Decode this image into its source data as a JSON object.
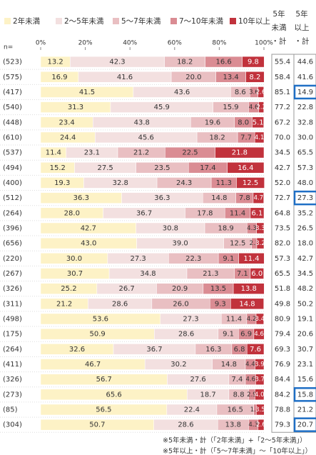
{
  "chart_data": {
    "type": "stacked_barh",
    "axis_label": "n=",
    "categories": [
      "(523)",
      "(575)",
      "(417)",
      "(540)",
      "(448)",
      "(610)",
      "(537)",
      "(494)",
      "(400)",
      "(512)",
      "(264)",
      "(396)",
      "(656)",
      "(220)",
      "(267)",
      "(326)",
      "(311)",
      "(498)",
      "(175)",
      "(264)",
      "(411)",
      "(326)",
      "(273)",
      "(85)",
      "(304)"
    ],
    "xlim": [
      0,
      100
    ],
    "xticks": [
      {
        "value": 0,
        "label": "0%"
      },
      {
        "value": 20,
        "label": "20%"
      },
      {
        "value": 40,
        "label": "40%"
      },
      {
        "value": 60,
        "label": "60%"
      },
      {
        "value": 80,
        "label": "80%"
      },
      {
        "value": 100,
        "label": "100%"
      }
    ],
    "series": [
      {
        "name": "2年未満",
        "color": "#fdf2c6",
        "text_color": "#333333",
        "values": [
          13.2,
          16.9,
          41.5,
          31.3,
          23.4,
          24.4,
          11.4,
          15.2,
          19.3,
          36.3,
          28.0,
          42.7,
          43.0,
          30.0,
          30.7,
          25.2,
          21.2,
          53.6,
          50.9,
          32.6,
          46.7,
          56.7,
          65.6,
          56.5,
          50.7
        ],
        "value_labels": [
          "13.2",
          "16.9",
          "41.5",
          "31.3",
          "23.4",
          "24.4",
          "11.4",
          "15.2",
          "19.3",
          "36.3",
          "28.0",
          "42.7",
          "43.0",
          "30.0",
          "30.7",
          "25.2",
          "21.2",
          "53.6",
          "50.9",
          "32.6",
          "46.7",
          "56.7",
          "65.6",
          "56.5",
          "50.7"
        ]
      },
      {
        "name": "2～5年未満",
        "color": "#f3e0e0",
        "text_color": "#333333",
        "values": [
          42.3,
          41.6,
          43.6,
          45.9,
          43.8,
          45.6,
          23.1,
          27.5,
          32.8,
          36.3,
          36.7,
          30.8,
          39.0,
          27.3,
          34.8,
          26.7,
          28.6,
          27.3,
          28.6,
          36.7,
          30.2,
          27.6,
          18.7,
          22.4,
          28.6
        ],
        "value_labels": [
          "42.3",
          "41.6",
          "43.6",
          "45.9",
          "43.8",
          "45.6",
          "23.1",
          "27.5",
          "32.8",
          "36.3",
          "36.7",
          "30.8",
          "39.0",
          "27.3",
          "34.8",
          "26.7",
          "28.6",
          "27.3",
          "28.6",
          "36.7",
          "30.2",
          "27.6",
          "18.7",
          "22.4",
          "28.6"
        ]
      },
      {
        "name": "5～7年未満",
        "color": "#e9bfc2",
        "text_color": "#333333",
        "values": [
          18.2,
          20.0,
          8.6,
          15.9,
          19.6,
          18.2,
          21.2,
          23.5,
          24.3,
          14.8,
          17.8,
          18.9,
          12.5,
          22.3,
          21.3,
          20.9,
          26.0,
          11.4,
          9.1,
          16.3,
          14.8,
          7.4,
          8.8,
          16.5,
          13.8
        ],
        "value_labels": [
          "18.2",
          "20.0",
          "8.6",
          "15.9",
          "19.6",
          "18.2",
          "21.2",
          "23.5",
          "24.3",
          "14.8",
          "17.8",
          "18.9",
          "12.5",
          "22.3",
          "21.3",
          "20.9",
          "26.0",
          "11.4",
          "9.1",
          "16.3",
          "14.8",
          "7.4",
          "8.8",
          "16.5",
          "13.8"
        ]
      },
      {
        "name": "7～10年未満",
        "color": "#da8c93",
        "text_color": "#333333",
        "values": [
          16.6,
          13.4,
          3.6,
          4.6,
          8.0,
          7.7,
          22.5,
          17.4,
          11.3,
          7.8,
          11.4,
          4.3,
          2.3,
          9.1,
          7.1,
          13.5,
          9.3,
          4.2,
          6.9,
          6.8,
          4.4,
          4.6,
          2.9,
          1.2,
          4.3
        ],
        "value_labels": [
          "16.6",
          "13.4",
          "3.6",
          "4.6",
          "8.0",
          "7.7",
          "22.5",
          "17.4",
          "11.3",
          "7.8",
          "11.4",
          "4.3",
          "2.3",
          "9.1",
          "7.1",
          "13.5",
          "9.3",
          "4.2",
          "6.9",
          "6.8",
          "4.4",
          "4.6",
          "2.9",
          "1.2",
          "4.3"
        ]
      },
      {
        "name": "10年以上",
        "color": "#c1323c",
        "text_color": "#ffffff",
        "values": [
          9.8,
          8.2,
          2.6,
          2.2,
          5.1,
          4.1,
          21.8,
          16.4,
          12.5,
          4.7,
          6.1,
          3.3,
          3.2,
          11.4,
          6.0,
          13.8,
          14.8,
          3.4,
          4.6,
          7.6,
          3.9,
          3.7,
          4.0,
          3.5,
          2.6
        ],
        "value_labels": [
          "9.8",
          "8.2",
          "2.6",
          "2.2",
          "5.1",
          "4.1",
          "21.8",
          "16.4",
          "12.5",
          "4.7",
          "6.1",
          "3.3",
          "3.2",
          "11.4",
          "6.0",
          "13.8",
          "14.8",
          "3.4",
          "4.6",
          "7.6",
          "3.9",
          "3.7",
          "4.0",
          "3.5",
          "2.6"
        ]
      }
    ],
    "summary_columns": [
      {
        "header": [
          "5年",
          "未満",
          "・計"
        ],
        "values": [
          55.4,
          58.4,
          85.1,
          77.2,
          67.2,
          70.0,
          34.5,
          42.7,
          52.0,
          72.7,
          64.8,
          73.5,
          82.0,
          57.3,
          65.5,
          51.8,
          49.8,
          80.9,
          79.4,
          69.3,
          76.9,
          84.4,
          84.2,
          78.8,
          79.3
        ],
        "value_labels": [
          "55.4",
          "58.4",
          "85.1",
          "77.2",
          "67.2",
          "70.0",
          "34.5",
          "42.7",
          "52.0",
          "72.7",
          "64.8",
          "73.5",
          "82.0",
          "57.3",
          "65.5",
          "51.8",
          "49.8",
          "80.9",
          "79.4",
          "69.3",
          "76.9",
          "84.4",
          "84.2",
          "78.8",
          "79.3"
        ],
        "highlight": [
          false,
          false,
          false,
          false,
          false,
          false,
          false,
          false,
          false,
          false,
          false,
          false,
          false,
          false,
          false,
          false,
          false,
          false,
          false,
          false,
          false,
          false,
          false,
          false,
          false
        ]
      },
      {
        "header": [
          "5年",
          "以上",
          "・計"
        ],
        "values": [
          44.6,
          41.6,
          14.9,
          22.8,
          32.8,
          30.0,
          65.5,
          57.3,
          48.0,
          27.3,
          35.2,
          26.5,
          18.0,
          42.7,
          34.5,
          48.2,
          50.2,
          19.1,
          20.6,
          30.7,
          23.1,
          15.6,
          15.8,
          21.2,
          20.7
        ],
        "value_labels": [
          "44.6",
          "41.6",
          "14.9",
          "22.8",
          "32.8",
          "30.0",
          "65.5",
          "57.3",
          "48.0",
          "27.3",
          "35.2",
          "26.5",
          "18.0",
          "42.7",
          "34.5",
          "48.2",
          "50.2",
          "19.1",
          "20.6",
          "30.7",
          "23.1",
          "15.6",
          "15.8",
          "21.2",
          "20.7"
        ],
        "highlight": [
          false,
          false,
          true,
          false,
          false,
          false,
          false,
          false,
          false,
          true,
          false,
          false,
          false,
          false,
          false,
          false,
          false,
          false,
          false,
          false,
          false,
          false,
          true,
          false,
          true
        ]
      }
    ],
    "highlight_color": "#1f6fc5",
    "footnotes": [
      "※5年未満・計（「2年未満」+「2～5年未満」）",
      "※5年以上・計（「5～7年未満」～「10年以上」）"
    ]
  }
}
